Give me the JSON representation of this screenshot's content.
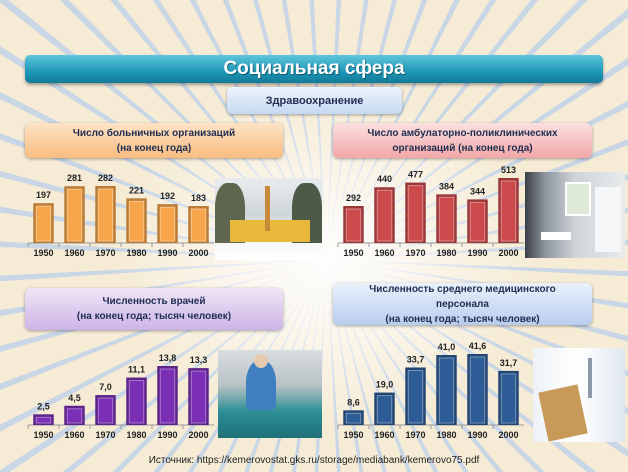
{
  "header": {
    "title": "Социальная сфера",
    "subtitle": "Здравоохранение"
  },
  "source": "Источник: https://kemerovostat.gks.ru/storage/mediabank/kemerovo75.pdf",
  "chart_data": [
    {
      "type": "bar",
      "title": "Число больничных организаций",
      "subtitle": "(на конец года)",
      "categories": [
        "1950",
        "1960",
        "1970",
        "1980",
        "1990",
        "2000"
      ],
      "values": [
        197,
        281,
        282,
        221,
        192,
        183
      ],
      "labels": [
        "197",
        "281",
        "282",
        "221",
        "192",
        "183"
      ],
      "color": "#f7a54a",
      "ylim": [
        0,
        282
      ]
    },
    {
      "type": "bar",
      "title": "Число амбулаторно-поликлинических",
      "subtitle": "организаций (на конец года)",
      "categories": [
        "1950",
        "1960",
        "1970",
        "1980",
        "1990",
        "2000"
      ],
      "values": [
        292,
        440,
        477,
        384,
        344,
        513
      ],
      "labels": [
        "292",
        "440",
        "477",
        "384",
        "344",
        "513"
      ],
      "color": "#cc4a4c",
      "ylim": [
        0,
        513
      ]
    },
    {
      "type": "bar",
      "title": "Численность врачей",
      "subtitle": "(на конец года; тысяч человек)",
      "categories": [
        "1950",
        "1960",
        "1970",
        "1980",
        "1990",
        "2000"
      ],
      "values": [
        2.5,
        4.5,
        7.0,
        11.1,
        13.8,
        13.3
      ],
      "labels": [
        "2,5",
        "4,5",
        "7,0",
        "11,1",
        "13,8",
        "13,3"
      ],
      "color": "#7b2fb5",
      "ylim": [
        0,
        13.8
      ]
    },
    {
      "type": "bar",
      "title": "Численность среднего медицинского",
      "title2": "персонала",
      "subtitle": "(на конец года; тысяч человек)",
      "categories": [
        "1950",
        "1960",
        "1970",
        "1980",
        "1990",
        "2000"
      ],
      "values": [
        8.6,
        19.0,
        33.7,
        41.0,
        41.6,
        31.7
      ],
      "labels": [
        "8,6",
        "19,0",
        "33,7",
        "41,0",
        "41,6",
        "31,7"
      ],
      "color": "#2e5c96",
      "ylim": [
        0,
        41.6
      ]
    }
  ]
}
